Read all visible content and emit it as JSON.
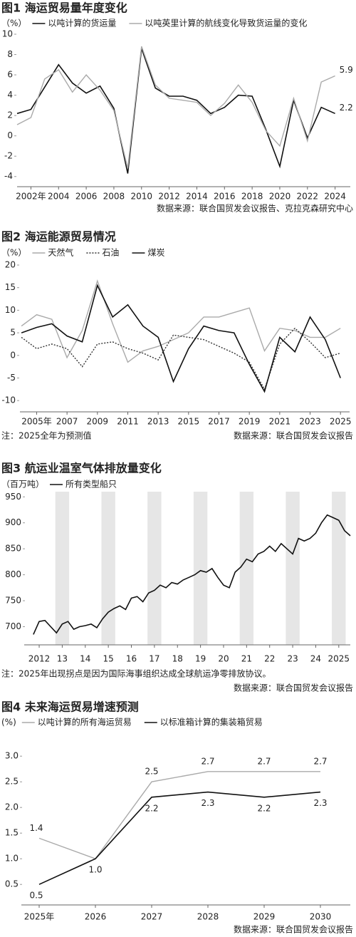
{
  "chart_data": [
    {
      "type": "line",
      "title": "图1 海运贸易量年度变化",
      "y_label": "（%）",
      "source": "数据来源：联合国贸发会议报告、克拉克森研究中心",
      "x": [
        2001,
        2002,
        2003,
        2004,
        2005,
        2006,
        2007,
        2008,
        2009,
        2010,
        2011,
        2012,
        2013,
        2014,
        2015,
        2016,
        2017,
        2018,
        2019,
        2020,
        2021,
        2022,
        2023,
        2024
      ],
      "series": [
        {
          "name": "以吨计算的货运量",
          "color": "#111111",
          "values": [
            2.2,
            2.6,
            4.8,
            7.0,
            5.2,
            4.2,
            4.9,
            2.7,
            -3.7,
            8.6,
            4.7,
            3.9,
            3.9,
            3.5,
            2.2,
            2.8,
            4.0,
            3.9,
            0.6,
            -3.0,
            3.5,
            -0.2,
            2.8,
            2.2
          ],
          "value_labels": [
            null,
            null,
            null,
            null,
            null,
            null,
            null,
            null,
            null,
            null,
            null,
            null,
            null,
            null,
            null,
            null,
            null,
            null,
            null,
            null,
            null,
            null,
            null,
            "2.2"
          ]
        },
        {
          "name": "以吨英里计算的航线变化导致货运量的变化",
          "color": "#aaaaaa",
          "values": [
            1.1,
            1.8,
            5.6,
            6.5,
            4.3,
            6.0,
            4.5,
            2.5,
            -3.2,
            8.8,
            5.0,
            3.7,
            3.5,
            3.3,
            2.0,
            3.2,
            5.0,
            3.3,
            0.5,
            -1.0,
            3.7,
            -0.5,
            5.3,
            5.9
          ],
          "value_labels": [
            null,
            null,
            null,
            null,
            null,
            null,
            null,
            null,
            null,
            null,
            null,
            null,
            null,
            null,
            null,
            null,
            null,
            null,
            null,
            null,
            null,
            null,
            null,
            "5.9"
          ]
        }
      ],
      "xlim": [
        2001,
        2025.1
      ],
      "xticks": [
        {
          "value": 2002,
          "label": "2002年"
        },
        2004,
        2006,
        2008,
        2010,
        2012,
        2014,
        2016,
        2018,
        2020,
        2022,
        2024
      ],
      "ylim": [
        -5,
        10
      ],
      "yticks": [
        10,
        8,
        6,
        4,
        2,
        0,
        -2,
        -4
      ]
    },
    {
      "type": "line",
      "title": "图2 海运能源贸易情况",
      "y_label": "（%）",
      "note": "注：2025全年为预测值",
      "source": "数据来源：联合国贸发会议报告",
      "x": [
        2004,
        2005,
        2006,
        2007,
        2008,
        2009,
        2010,
        2011,
        2012,
        2013,
        2014,
        2015,
        2016,
        2017,
        2018,
        2019,
        2020,
        2021,
        2022,
        2023,
        2024,
        2025
      ],
      "series": [
        {
          "name": "天然气",
          "color": "#aaaaaa",
          "values": [
            6.5,
            9,
            8,
            -0.5,
            5.5,
            16.5,
            7,
            -1.5,
            1,
            2,
            3.5,
            5,
            8.5,
            8.5,
            9.5,
            10.5,
            1,
            6,
            5.5,
            4,
            4,
            6
          ]
        },
        {
          "name": "石油",
          "color": "#333333",
          "line_style": "dotted",
          "values": [
            4,
            1.5,
            2.5,
            1.5,
            -2.5,
            2.5,
            3,
            1.5,
            0.5,
            -1,
            4.5,
            4,
            3.5,
            2,
            0.5,
            -1.5,
            -7.5,
            2.5,
            6,
            3,
            -0.5,
            0.5
          ]
        },
        {
          "name": "煤炭",
          "color": "#111111",
          "values": [
            5,
            6.2,
            7,
            4.3,
            3,
            15.5,
            8.5,
            11.2,
            6.5,
            4,
            -5.8,
            1.5,
            6.5,
            5.5,
            5,
            -2,
            -8,
            4,
            0.8,
            8.5,
            3.5,
            -5
          ]
        }
      ],
      "xlim": [
        2003.9,
        2025.6
      ],
      "xticks": [
        {
          "value": 2005,
          "label": "2005年"
        },
        2007,
        2009,
        2011,
        2013,
        2015,
        2017,
        2019,
        2021,
        2023,
        2025
      ],
      "ylim": [
        -12.5,
        20
      ],
      "yticks": [
        20,
        15,
        10,
        5,
        0,
        -5,
        -10
      ]
    },
    {
      "type": "line",
      "title": "图3 航运业温室气体排放量变化",
      "y_label": "（百万吨）",
      "note": "注：2025年出现拐点是因为国际海事组织达成全球航运净零排放协议。",
      "source": "数据来源：联合国贸发会议报告",
      "band_shading": true,
      "x": [
        2011.75,
        2012,
        2012.25,
        2012.5,
        2012.75,
        2013,
        2013.25,
        2013.5,
        2013.75,
        2014,
        2014.25,
        2014.5,
        2014.75,
        2015,
        2015.25,
        2015.5,
        2015.75,
        2016,
        2016.25,
        2016.5,
        2016.75,
        2017,
        2017.25,
        2017.5,
        2017.75,
        2018,
        2018.25,
        2018.5,
        2018.75,
        2019,
        2019.25,
        2019.5,
        2019.75,
        2020,
        2020.25,
        2020.5,
        2020.75,
        2021,
        2021.25,
        2021.5,
        2021.75,
        2022,
        2022.25,
        2022.5,
        2022.75,
        2023,
        2023.25,
        2023.5,
        2023.75,
        2024,
        2024.25,
        2024.5,
        2024.75,
        2025,
        2025.25,
        2025.5
      ],
      "series": [
        {
          "name": "所有类型船只",
          "color": "#111111",
          "values": [
            685,
            710,
            712,
            700,
            688,
            705,
            710,
            695,
            700,
            702,
            705,
            698,
            715,
            728,
            735,
            740,
            733,
            755,
            758,
            748,
            765,
            770,
            780,
            775,
            785,
            782,
            790,
            795,
            800,
            808,
            805,
            812,
            795,
            780,
            775,
            805,
            815,
            830,
            825,
            840,
            845,
            855,
            845,
            860,
            850,
            840,
            870,
            865,
            870,
            880,
            900,
            915,
            910,
            905,
            885,
            875
          ]
        }
      ],
      "xlim": [
        2011.35,
        2025.5
      ],
      "xticks": [
        2012,
        {
          "value": 2013,
          "label": "13"
        },
        {
          "value": 2014,
          "label": "14"
        },
        {
          "value": 2015,
          "label": "15"
        },
        {
          "value": 2016,
          "label": "16"
        },
        {
          "value": 2017,
          "label": "17"
        },
        {
          "value": 2018,
          "label": "18"
        },
        {
          "value": 2019,
          "label": "19"
        },
        {
          "value": 2020,
          "label": "20"
        },
        {
          "value": 2021,
          "label": "21"
        },
        {
          "value": 2022,
          "label": "22"
        },
        {
          "value": 2023,
          "label": "23"
        },
        {
          "value": 2024,
          "label": "24"
        },
        2025
      ],
      "ylim": [
        665,
        960
      ],
      "yticks": [
        950,
        900,
        850,
        800,
        750,
        700
      ]
    },
    {
      "type": "line",
      "title": "图4 未来海运贸易增速预测",
      "y_label": "(%)",
      "source": "数据来源：联合国贸发会议报告",
      "categories": [
        "2025年",
        "2026",
        "2027",
        "2028",
        "2029",
        "2030"
      ],
      "series": [
        {
          "name": "以吨计算的所有海运贸易",
          "color": "#aaaaaa",
          "values": [
            1.4,
            1.0,
            2.5,
            2.7,
            2.7,
            2.7
          ],
          "value_labels": [
            "1.4",
            null,
            "2.5",
            "2.7",
            "2.7",
            "2.7"
          ]
        },
        {
          "name": "以标准箱计算的集装箱贸易",
          "color": "#111111",
          "values": [
            0.5,
            1.0,
            2.2,
            2.3,
            2.2,
            2.3
          ],
          "value_labels": [
            "0.5",
            "1.0",
            "2.2",
            "2.3",
            "2.2",
            "2.3"
          ]
        }
      ],
      "ylim": [
        0.1,
        3.1
      ],
      "yticks": [
        {
          "value": 3,
          "label": "3.0"
        },
        2.5,
        {
          "value": 2,
          "label": "2.0"
        },
        1.5,
        {
          "value": 1,
          "label": "1.0"
        },
        0.5
      ]
    }
  ]
}
